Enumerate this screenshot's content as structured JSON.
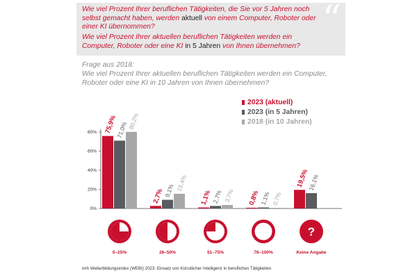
{
  "questions": {
    "q1_part1": "Wie viel Prozent Ihrer beruflichen Tätigkeiten, die Sie vor 5 Jahren noch selbst gemacht haben, werden ",
    "q1_highlight": "aktuell",
    "q1_part2": " von einem Computer, Roboter oder einer KI übernommen?",
    "q2_part1": "Wie viel Prozent Ihrer aktuellen beruflichen Tätigkeiten werden ein Computer, Roboter oder eine KI ",
    "q2_highlight": "in 5 Jahren",
    "q2_part2": " von Ihnen übernehmen?",
    "quote_glyph": "“"
  },
  "question_2018": {
    "label": "Frage aus 2018:",
    "text": "Wie viel Prozent Ihrer aktuellen beruflichen Tätigkeiten werden ein Computer, Roboter oder eine KI in 10 Jahren von Ihnen übernehmen?"
  },
  "footnote": "imh Weiterbildungsindex (WEBI) 2023: Einsatz von Künstlicher Intelligenz in beruflichen Tätigkeiten",
  "colors": {
    "red": "#c8102e",
    "dark_gray": "#5a5b5e",
    "light_gray": "#a7a8aa",
    "box_bg": "#e8e8e8"
  },
  "chart_data": {
    "type": "bar",
    "categories": [
      "0–25%",
      "26–50%",
      "51–75%",
      "76–100%",
      "Keine Angabe"
    ],
    "series": [
      {
        "name": "2023 (aktuell)",
        "values": [
          75.9,
          2.7,
          1.1,
          0.8,
          19.5
        ],
        "labels": [
          "75,9%",
          "2,7%",
          "1,1%",
          "0,8%",
          "19,5%"
        ],
        "color": "#c8102e"
      },
      {
        "name": "2023 (in 5 Jahren)",
        "values": [
          71.0,
          9.1,
          2.7,
          1.1,
          16.1
        ],
        "labels": [
          "71,0%",
          "9,1%",
          "2,7%",
          "1,1%",
          "16,1%"
        ],
        "color": "#5a5b5e"
      },
      {
        "name": "2018 (in 10 Jahren)",
        "values": [
          80.2,
          15.4,
          3.7,
          0.7,
          null
        ],
        "labels": [
          "80,2%",
          "15,4%",
          "3,7%",
          "0,7%",
          ""
        ],
        "color": "#a7a8aa"
      }
    ],
    "y_ticks": [
      "80%",
      "60%",
      "40%",
      "20%",
      "0%"
    ],
    "ylim": [
      0,
      80
    ],
    "grid": false,
    "legend_position": "top-right",
    "category_icons": [
      {
        "fill_fraction": 0.25,
        "text": ""
      },
      {
        "fill_fraction": 0.5,
        "text": ""
      },
      {
        "fill_fraction": 0.75,
        "text": ""
      },
      {
        "fill_fraction": 1.0,
        "text": ""
      },
      {
        "fill_fraction": null,
        "text": "?"
      }
    ]
  }
}
